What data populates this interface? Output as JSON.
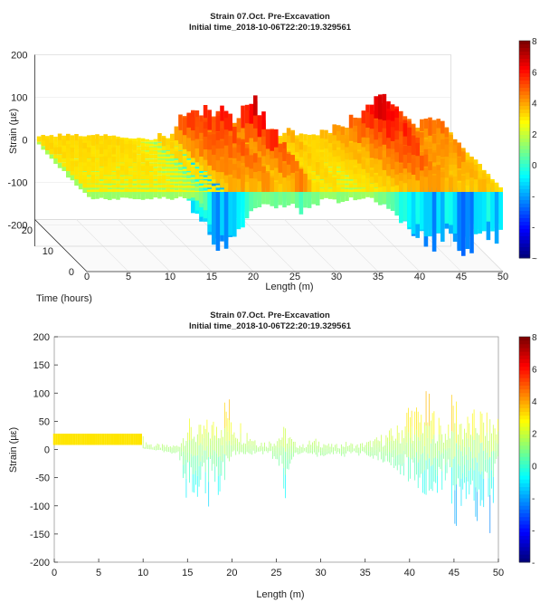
{
  "top": {
    "title": "Strain 07.Oct. Pre-Excavation",
    "subtitle": "Initial time_2018-10-06T22:20:19.329561",
    "ylabel": "Strain (µε)",
    "xlabel": "Length (m)",
    "tlabel": "Time (hours)",
    "colorbar_ticks": [
      "8",
      "6",
      "4",
      "2",
      "0",
      "-",
      "-",
      "~"
    ]
  },
  "bottom": {
    "title": "Strain 07.Oct. Pre-Excavation",
    "subtitle": "Initial time_2018-10-06T22:20:19.329561",
    "ylabel": "Strain (µε)",
    "xlabel": "Length (m)",
    "colorbar_ticks": [
      "8",
      "6",
      "4",
      "2",
      "0",
      "-",
      "-",
      "-"
    ]
  },
  "chart_data": [
    {
      "type": "area",
      "view": "3d-waterfall",
      "title": "Strain 07.Oct. Pre-Excavation",
      "subtitle": "Initial time_2018-10-06T22:20:19.329561",
      "xlabel": "Length (m)",
      "ylabel": "Strain (µε)",
      "tlabel": "Time (hours)",
      "x_ticks": [
        0,
        5,
        10,
        15,
        20,
        25,
        30,
        35,
        40,
        45,
        50
      ],
      "y_ticks": [
        200,
        100,
        0,
        -100,
        -200
      ],
      "t_ticks": [
        20,
        10,
        0
      ],
      "xlim": [
        0,
        50
      ],
      "ylim": [
        -250,
        200
      ],
      "tlim": [
        0,
        25
      ],
      "colormap": "jet",
      "envelope": {
        "x": [
          0,
          2,
          4,
          6,
          8,
          9.9,
          10,
          11,
          12,
          13,
          14,
          15,
          16,
          17,
          18,
          19,
          20,
          21,
          22,
          23,
          24,
          25,
          26,
          27,
          28,
          29,
          30,
          31,
          32,
          33,
          34,
          35,
          36,
          37,
          38,
          39,
          40,
          41,
          42,
          43,
          44,
          45,
          46,
          47,
          48,
          49,
          50
        ],
        "max": [
          20,
          20,
          20,
          20,
          20,
          20,
          20,
          15,
          12,
          10,
          5,
          30,
          5,
          70,
          100,
          95,
          90,
          100,
          110,
          50,
          60,
          120,
          130,
          50,
          30,
          20,
          40,
          25,
          20,
          20,
          30,
          30,
          50,
          40,
          80,
          90,
          110,
          130,
          120,
          90,
          70,
          60,
          60,
          70,
          70,
          40,
          20
        ],
        "min": [
          -20,
          -20,
          -20,
          -20,
          -20,
          -20,
          -20,
          -15,
          -15,
          -20,
          -30,
          -130,
          -150,
          -170,
          -120,
          -100,
          -60,
          -50,
          -40,
          -40,
          -50,
          -40,
          -60,
          -40,
          -30,
          -20,
          -30,
          -25,
          -20,
          -20,
          -20,
          -30,
          -40,
          -60,
          -80,
          -100,
          -110,
          -170,
          -140,
          -110,
          -90,
          -160,
          -170,
          -110,
          -100,
          -140,
          -80
        ]
      }
    },
    {
      "type": "scatter",
      "view": "2d-projection",
      "title": "Strain 07.Oct. Pre-Excavation",
      "subtitle": "Initial time_2018-10-06T22:20:19.329561",
      "xlabel": "Length (m)",
      "ylabel": "Strain (µε)",
      "x_ticks": [
        0,
        5,
        10,
        15,
        20,
        25,
        30,
        35,
        40,
        45,
        50
      ],
      "y_ticks": [
        200,
        150,
        100,
        50,
        0,
        -50,
        -100,
        -150,
        -200
      ],
      "xlim": [
        0,
        50
      ],
      "ylim": [
        -200,
        200
      ],
      "colormap": "jet",
      "envelope": {
        "x": [
          0,
          2,
          4,
          6,
          8,
          9.9,
          10,
          11,
          12,
          13,
          14,
          15,
          16,
          17,
          18,
          19,
          19.5,
          20,
          21,
          22,
          23,
          24,
          25,
          26,
          27,
          28,
          29,
          30,
          31,
          32,
          33,
          34,
          35,
          36,
          37,
          38,
          39,
          40,
          41,
          42,
          43,
          44,
          45,
          46,
          47,
          48,
          49,
          50
        ],
        "max": [
          28,
          28,
          28,
          28,
          28,
          28,
          25,
          12,
          10,
          8,
          10,
          60,
          40,
          55,
          60,
          90,
          115,
          80,
          55,
          40,
          20,
          15,
          30,
          45,
          15,
          10,
          20,
          20,
          10,
          10,
          15,
          10,
          15,
          20,
          30,
          40,
          50,
          100,
          80,
          110,
          70,
          40,
          120,
          60,
          70,
          80,
          60,
          70
        ],
        "min": [
          8,
          8,
          8,
          8,
          8,
          8,
          5,
          0,
          -5,
          -10,
          -10,
          -130,
          -120,
          -100,
          -110,
          -80,
          -30,
          -10,
          -10,
          -10,
          -10,
          -10,
          -25,
          -90,
          -10,
          -10,
          -10,
          -15,
          -10,
          -10,
          -15,
          -10,
          -15,
          -20,
          -30,
          -40,
          -50,
          -60,
          -80,
          -110,
          -90,
          -70,
          -170,
          -90,
          -120,
          -150,
          -160,
          -40
        ]
      }
    }
  ]
}
